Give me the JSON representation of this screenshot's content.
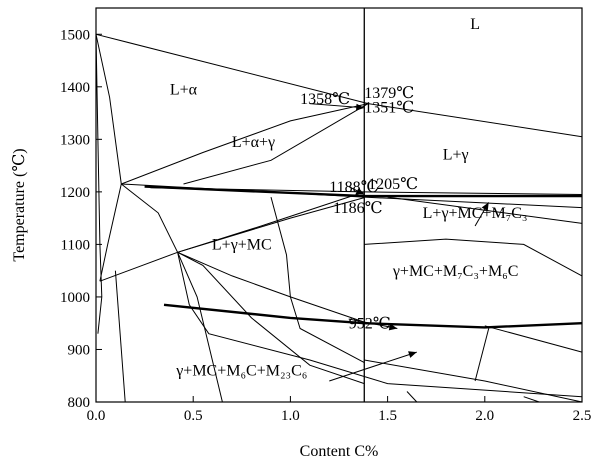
{
  "chart_data": {
    "type": "line",
    "xlabel": "Content C%",
    "ylabel": "Temperature (℃)",
    "xlim": [
      0.0,
      2.5
    ],
    "ylim": [
      800,
      1550
    ],
    "xticks": [
      "0.0",
      "0.5",
      "1.0",
      "1.5",
      "2.0",
      "2.5"
    ],
    "yticks": [
      "800",
      "900",
      "1000",
      "1100",
      "1200",
      "1300",
      "1400",
      "1500"
    ],
    "grid": false,
    "vertical_marker_x": 1.38,
    "regions": [
      {
        "label": "L",
        "x": 1.95,
        "y": 1510
      },
      {
        "label": "L+α",
        "x": 0.45,
        "y": 1385
      },
      {
        "label": "L+α+γ",
        "x": 0.81,
        "y": 1285
      },
      {
        "label": "L+γ",
        "x": 1.85,
        "y": 1262
      },
      {
        "label": "L+γ+MC",
        "x": 0.75,
        "y": 1090
      },
      {
        "label": "L+γ+MC+M₇C₃",
        "x": 1.95,
        "y": 1150
      },
      {
        "label": "γ+MC+M₇C₃+M₆C",
        "x": 1.85,
        "y": 1040
      },
      {
        "label": "γ+MC+M₆C+M₂₃C₆",
        "x": 0.75,
        "y": 850
      }
    ],
    "annotations": [
      {
        "label": "1379℃",
        "x": 1.38,
        "y": 1379
      },
      {
        "label": "1358℃",
        "x": 1.05,
        "y": 1367
      },
      {
        "label": "1351℃",
        "x": 1.38,
        "y": 1351
      },
      {
        "label": "1188℃",
        "x": 1.2,
        "y": 1200
      },
      {
        "label": "1205℃",
        "x": 1.4,
        "y": 1205
      },
      {
        "label": "1186℃",
        "x": 1.22,
        "y": 1160
      },
      {
        "label": "952℃",
        "x": 1.3,
        "y": 940
      }
    ],
    "series": [
      {
        "style": "thin",
        "points": [
          [
            0.0,
            1500
          ],
          [
            1.4,
            1368
          ],
          [
            2.5,
            1305
          ]
        ]
      },
      {
        "style": "thin",
        "points": [
          [
            0.0,
            1500
          ],
          [
            0.07,
            1380
          ],
          [
            0.13,
            1215
          ]
        ]
      },
      {
        "style": "thin",
        "points": [
          [
            0.0,
            1500
          ],
          [
            0.01,
            1300
          ],
          [
            0.02,
            1100
          ],
          [
            0.03,
            1000
          ],
          [
            0.01,
            930
          ]
        ]
      },
      {
        "style": "thin",
        "points": [
          [
            0.13,
            1215
          ],
          [
            0.55,
            1275
          ],
          [
            1.0,
            1335
          ],
          [
            1.4,
            1368
          ]
        ]
      },
      {
        "style": "thin",
        "points": [
          [
            0.45,
            1215
          ],
          [
            0.9,
            1260
          ],
          [
            1.4,
            1368
          ]
        ]
      },
      {
        "style": "thin",
        "points": [
          [
            0.13,
            1215
          ],
          [
            1.38,
            1190
          ],
          [
            2.5,
            1170
          ]
        ]
      },
      {
        "style": "thin",
        "points": [
          [
            0.28,
            1208
          ],
          [
            1.38,
            1200
          ],
          [
            2.5,
            1195
          ]
        ]
      },
      {
        "style": "thin",
        "points": [
          [
            1.5,
            1190
          ],
          [
            2.5,
            1140
          ]
        ]
      },
      {
        "style": "thin",
        "points": [
          [
            0.13,
            1215
          ],
          [
            0.32,
            1160
          ],
          [
            0.42,
            1085
          ],
          [
            0.52,
            1000
          ],
          [
            0.65,
            800
          ]
        ]
      },
      {
        "style": "thin",
        "points": [
          [
            0.13,
            1215
          ],
          [
            0.06,
            1100
          ],
          [
            0.02,
            1030
          ]
        ]
      },
      {
        "style": "thin",
        "points": [
          [
            0.02,
            1030
          ],
          [
            0.42,
            1085
          ],
          [
            1.0,
            1150
          ],
          [
            1.38,
            1189
          ]
        ]
      },
      {
        "style": "thin",
        "points": [
          [
            0.42,
            1085
          ],
          [
            0.85,
            1135
          ],
          [
            1.38,
            1200
          ]
        ]
      },
      {
        "style": "thin",
        "points": [
          [
            0.42,
            1085
          ],
          [
            0.7,
            1040
          ],
          [
            1.0,
            1000
          ],
          [
            1.38,
            952
          ]
        ]
      },
      {
        "style": "thin",
        "points": [
          [
            0.1,
            1050
          ],
          [
            0.13,
            900
          ],
          [
            0.15,
            800
          ]
        ]
      },
      {
        "style": "thin",
        "points": [
          [
            0.42,
            1085
          ],
          [
            0.48,
            985
          ],
          [
            0.58,
            930
          ],
          [
            1.1,
            880
          ],
          [
            1.5,
            835
          ],
          [
            2.5,
            810
          ]
        ]
      },
      {
        "style": "thin",
        "points": [
          [
            0.42,
            1085
          ],
          [
            0.55,
            1060
          ],
          [
            0.8,
            960
          ],
          [
            1.1,
            870
          ],
          [
            1.38,
            835
          ]
        ]
      },
      {
        "style": "thin",
        "points": [
          [
            0.9,
            1190
          ],
          [
            0.98,
            1080
          ],
          [
            1.0,
            1000
          ],
          [
            1.05,
            940
          ],
          [
            1.38,
            875
          ]
        ]
      },
      {
        "style": "thin",
        "points": [
          [
            1.38,
            880
          ],
          [
            2.0,
            840
          ],
          [
            2.5,
            800
          ]
        ]
      },
      {
        "style": "thin",
        "points": [
          [
            2.02,
            940
          ],
          [
            1.95,
            840
          ]
        ]
      },
      {
        "style": "thin",
        "points": [
          [
            2.0,
            945
          ],
          [
            2.5,
            895
          ]
        ]
      },
      {
        "style": "thin",
        "points": [
          [
            1.6,
            820
          ],
          [
            1.65,
            800
          ]
        ]
      },
      {
        "style": "thin",
        "points": [
          [
            2.2,
            810
          ],
          [
            2.28,
            800
          ]
        ]
      },
      {
        "style": "thin",
        "points": [
          [
            1.38,
            1100
          ],
          [
            1.8,
            1110
          ],
          [
            2.2,
            1100
          ],
          [
            2.5,
            1040
          ]
        ]
      },
      {
        "style": "thick",
        "points": [
          [
            0.25,
            1210
          ],
          [
            1.38,
            1192
          ],
          [
            2.5,
            1192
          ]
        ]
      },
      {
        "style": "thick",
        "points": [
          [
            0.35,
            985
          ],
          [
            1.0,
            960
          ],
          [
            1.38,
            950
          ],
          [
            2.0,
            942
          ],
          [
            2.5,
            950
          ]
        ]
      }
    ],
    "arrows": [
      {
        "from": [
          1.1,
          1368
        ],
        "to": [
          1.38,
          1360
        ]
      },
      {
        "from": [
          1.3,
          1210
        ],
        "to": [
          1.38,
          1195
        ]
      },
      {
        "from": [
          1.95,
          1135
        ],
        "to": [
          2.02,
          1180
        ]
      },
      {
        "from": [
          1.2,
          840
        ],
        "to": [
          1.65,
          895
        ]
      },
      {
        "from": [
          1.3,
          958
        ],
        "to": [
          1.55,
          940
        ]
      }
    ]
  }
}
